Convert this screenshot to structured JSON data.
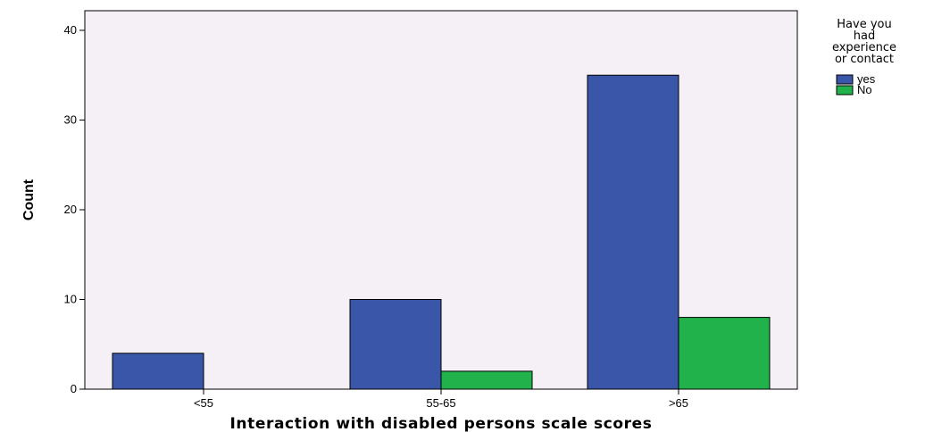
{
  "chart_data": {
    "type": "bar",
    "categories": [
      "<55",
      "55-65",
      ">65"
    ],
    "series": [
      {
        "name": "yes",
        "values": [
          4,
          10,
          35
        ],
        "color": "#3a56a8"
      },
      {
        "name": "No",
        "values": [
          0,
          2,
          8
        ],
        "color": "#22b24c"
      }
    ],
    "xlabel": "Interaction with disabled persons scale scores",
    "ylabel": "Count",
    "ylim": [
      0,
      40
    ],
    "yticks": [
      0,
      10,
      20,
      30,
      40
    ],
    "legend": {
      "title_lines": [
        "Have you",
        "had",
        "experience",
        "or contact"
      ],
      "placement": "right"
    },
    "plot_background": "#f5f0f5",
    "grid": false
  }
}
